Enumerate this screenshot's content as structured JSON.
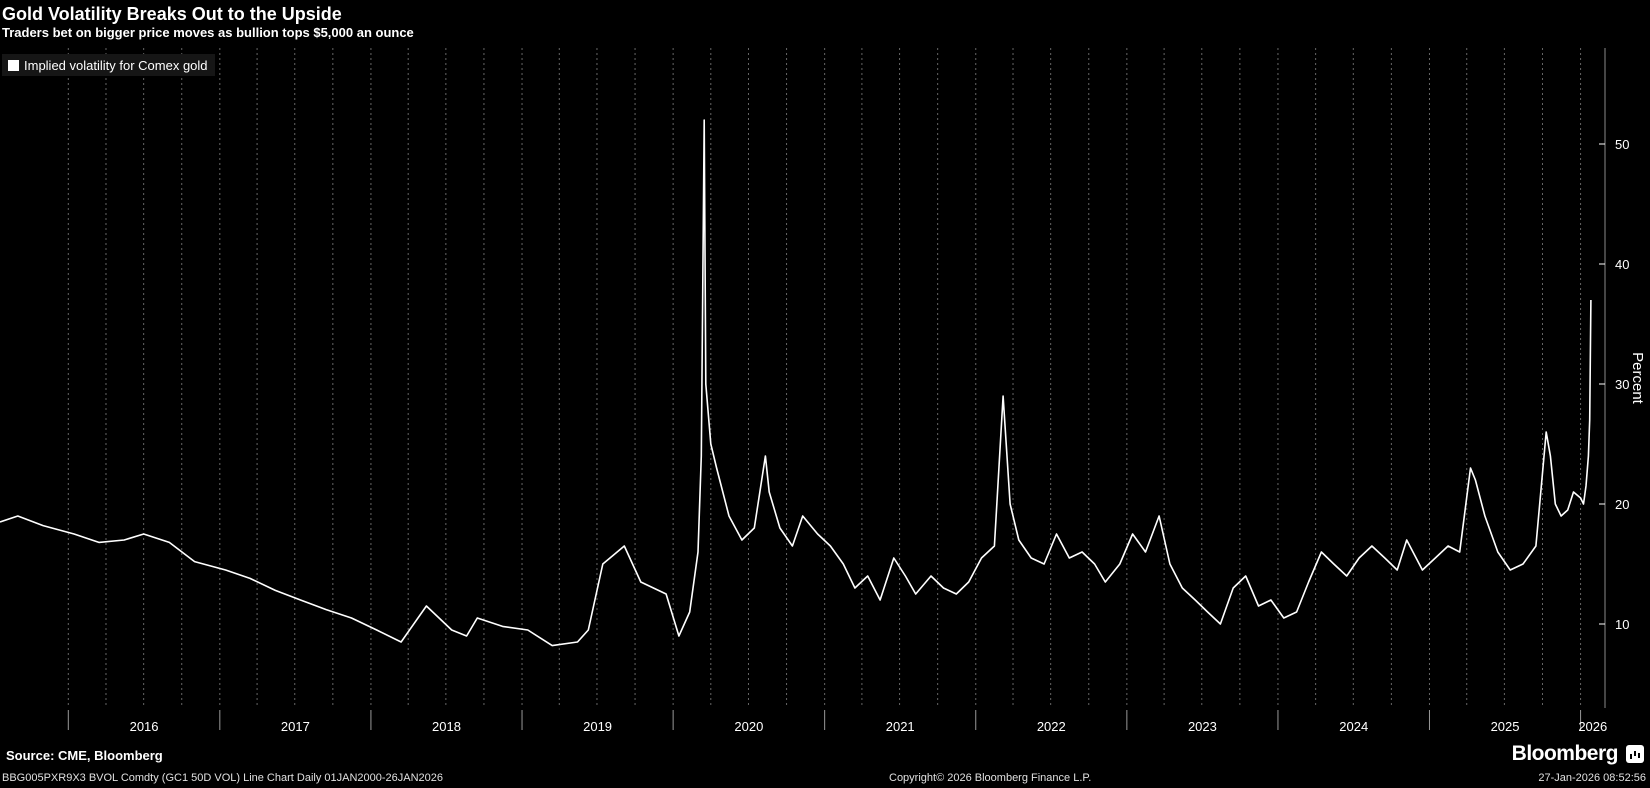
{
  "header": {
    "title": "Gold Volatility Breaks Out to the Upside",
    "subtitle": "Traders bet on bigger price moves as bullion tops $5,000 an ounce"
  },
  "footer": {
    "source": "Source: CME, Bloomberg",
    "ticker_line": "BBG005PXR9X3 BVOL Comdty (GC1 50D VOL) Line Chart Daily 01JAN2000-26JAN2026",
    "copyright": "Copyright© 2026 Bloomberg Finance L.P.",
    "timestamp": "27-Jan-2026 08:52:56",
    "brand": "Bloomberg",
    "brand_icon": "bloomberg-terminal-icon"
  },
  "colors": {
    "background": "#000000",
    "line": "#ffffff",
    "grid": "#666666",
    "text": "#ffffff"
  },
  "chart_data": {
    "type": "line",
    "ylabel": "Percent",
    "xlabel": "",
    "ylim": [
      3,
      58
    ],
    "y_ticks": [
      10,
      20,
      30,
      40,
      50
    ],
    "x_range": [
      "2015-07-20",
      "2026-03-01"
    ],
    "x_tick_labels": [
      "2016",
      "2017",
      "2018",
      "2019",
      "2020",
      "2021",
      "2022",
      "2023",
      "2024",
      "2025",
      "2026"
    ],
    "grid": "dotted vertical",
    "legend_position": "top-left",
    "series": [
      {
        "name": "Implied volatility for Comex gold",
        "x": [
          "2015-07-20",
          "2015-09-01",
          "2015-11-01",
          "2016-01-15",
          "2016-03-15",
          "2016-05-15",
          "2016-07-01",
          "2016-09-01",
          "2016-11-01",
          "2017-01-15",
          "2017-03-15",
          "2017-05-15",
          "2017-07-15",
          "2017-09-15",
          "2017-11-15",
          "2018-01-15",
          "2018-03-15",
          "2018-05-15",
          "2018-07-15",
          "2018-08-20",
          "2018-09-15",
          "2018-11-15",
          "2019-01-15",
          "2019-03-15",
          "2019-05-15",
          "2019-06-10",
          "2019-07-15",
          "2019-09-05",
          "2019-10-15",
          "2019-12-15",
          "2020-01-15",
          "2020-02-10",
          "2020-03-01",
          "2020-03-09",
          "2020-03-16",
          "2020-03-20",
          "2020-04-01",
          "2020-04-15",
          "2020-05-15",
          "2020-06-15",
          "2020-07-15",
          "2020-08-11",
          "2020-08-20",
          "2020-09-15",
          "2020-10-15",
          "2020-11-09",
          "2020-12-15",
          "2021-01-15",
          "2021-02-15",
          "2021-03-15",
          "2021-04-15",
          "2021-05-15",
          "2021-06-17",
          "2021-07-15",
          "2021-08-09",
          "2021-09-15",
          "2021-10-15",
          "2021-11-15",
          "2021-12-15",
          "2022-01-15",
          "2022-02-15",
          "2022-03-08",
          "2022-03-25",
          "2022-04-15",
          "2022-05-15",
          "2022-06-15",
          "2022-07-15",
          "2022-08-15",
          "2022-09-15",
          "2022-10-15",
          "2022-11-10",
          "2022-12-15",
          "2023-01-15",
          "2023-02-15",
          "2023-03-20",
          "2023-04-15",
          "2023-05-15",
          "2023-06-15",
          "2023-07-15",
          "2023-08-15",
          "2023-09-15",
          "2023-10-15",
          "2023-11-15",
          "2023-12-15",
          "2024-01-15",
          "2024-02-15",
          "2024-03-15",
          "2024-04-15",
          "2024-05-15",
          "2024-06-15",
          "2024-07-15",
          "2024-08-15",
          "2024-09-15",
          "2024-10-15",
          "2024-11-07",
          "2024-12-15",
          "2025-01-15",
          "2025-02-15",
          "2025-03-15",
          "2025-04-10",
          "2025-04-22",
          "2025-05-15",
          "2025-06-15",
          "2025-07-15",
          "2025-08-15",
          "2025-09-15",
          "2025-10-10",
          "2025-10-20",
          "2025-11-01",
          "2025-11-15",
          "2025-12-01",
          "2025-12-15",
          "2026-01-01",
          "2026-01-08",
          "2026-01-14",
          "2026-01-20",
          "2026-01-23",
          "2026-01-26"
        ],
        "y": [
          18.5,
          19,
          18.2,
          17.5,
          16.8,
          17,
          17.5,
          16.8,
          15.2,
          14.5,
          13.8,
          12.8,
          12,
          11.2,
          10.5,
          9.5,
          8.5,
          11.5,
          9.5,
          9,
          10.5,
          9.8,
          9.5,
          8.2,
          8.5,
          9.5,
          15,
          16.5,
          13.5,
          12.5,
          9,
          11,
          16,
          24,
          52,
          30,
          25,
          23,
          19,
          17,
          18,
          24,
          21,
          18,
          16.5,
          19,
          17.5,
          16.5,
          15,
          13,
          14,
          12,
          15.5,
          14,
          12.5,
          14,
          13,
          12.5,
          13.5,
          15.5,
          16.5,
          29,
          20,
          17,
          15.5,
          15,
          17.5,
          15.5,
          16,
          15,
          13.5,
          15,
          17.5,
          16,
          19,
          15,
          13,
          12,
          11,
          10,
          13,
          14,
          11.5,
          12,
          10.5,
          11,
          13.5,
          16,
          15,
          14,
          15.5,
          16.5,
          15.5,
          14.5,
          17,
          14.5,
          15.5,
          16.5,
          16,
          23,
          22,
          19,
          16,
          14.5,
          15,
          16.5,
          26,
          24,
          20,
          19,
          19.5,
          21,
          20.5,
          20,
          21.5,
          24,
          27,
          37
        ]
      }
    ]
  }
}
